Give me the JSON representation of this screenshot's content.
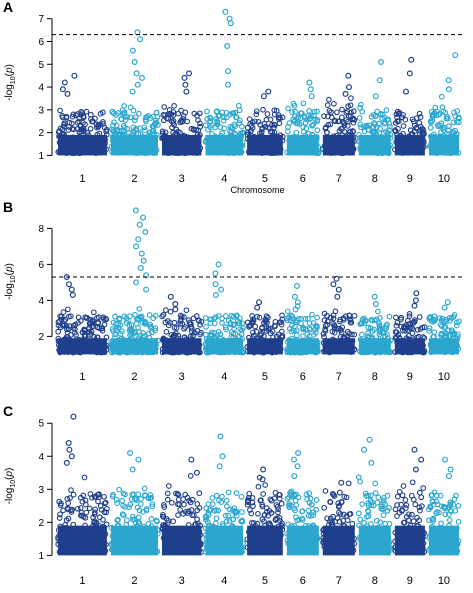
{
  "figure": {
    "panel_ylabel": "-log10(p)"
  },
  "chart_data": [
    {
      "panel_label": "A",
      "type": "scatter",
      "subtype": "manhattan",
      "xlabel": "Chromosome",
      "ylabel": "-log10(p)",
      "chromosomes": [
        "1",
        "2",
        "3",
        "4",
        "5",
        "6",
        "7",
        "8",
        "9",
        "10"
      ],
      "yticks": [
        1,
        2,
        3,
        4,
        5,
        6,
        7
      ],
      "ylim": [
        0.8,
        7.6
      ],
      "threshold": 6.3,
      "grid": false,
      "legend": "none",
      "colors": [
        "#1f3f8c",
        "#2aa6cf"
      ],
      "peaks": [
        {
          "chromosome": "1",
          "values": [
            4.5,
            4.2,
            3.9,
            3.7
          ]
        },
        {
          "chromosome": "2",
          "values": [
            6.4,
            6.1,
            5.6,
            5.1,
            4.6,
            4.4,
            4.1,
            3.8
          ]
        },
        {
          "chromosome": "3",
          "values": [
            4.6,
            4.4,
            4.1,
            3.8
          ]
        },
        {
          "chromosome": "4",
          "values": [
            7.3,
            7.0,
            6.8,
            5.8,
            4.7,
            4.1
          ]
        },
        {
          "chromosome": "5",
          "values": [
            3.8,
            3.6
          ]
        },
        {
          "chromosome": "6",
          "values": [
            4.2,
            3.9,
            3.6
          ]
        },
        {
          "chromosome": "7",
          "values": [
            4.5,
            4.0,
            3.7
          ]
        },
        {
          "chromosome": "8",
          "values": [
            5.1,
            4.3,
            3.6
          ]
        },
        {
          "chromosome": "9",
          "values": [
            5.2,
            4.6,
            3.8
          ]
        },
        {
          "chromosome": "10",
          "values": [
            5.4,
            4.3,
            3.9
          ]
        }
      ]
    },
    {
      "panel_label": "B",
      "type": "scatter",
      "subtype": "manhattan",
      "xlabel": "",
      "ylabel": "-log10(p)",
      "chromosomes": [
        "1",
        "2",
        "3",
        "4",
        "5",
        "6",
        "7",
        "8",
        "9",
        "10"
      ],
      "yticks": [
        2,
        4,
        6,
        8
      ],
      "ylim": [
        0.8,
        9.3
      ],
      "threshold": 5.3,
      "grid": false,
      "legend": "none",
      "colors": [
        "#1f3f8c",
        "#2aa6cf"
      ],
      "peaks": [
        {
          "chromosome": "1",
          "values": [
            5.3,
            4.9,
            4.6,
            4.3
          ]
        },
        {
          "chromosome": "2",
          "values": [
            9.0,
            8.6,
            8.2,
            7.8,
            7.4,
            7.0,
            6.6,
            6.2,
            5.8,
            5.4,
            5.0,
            4.6
          ]
        },
        {
          "chromosome": "3",
          "values": [
            4.2,
            3.8,
            3.5
          ]
        },
        {
          "chromosome": "4",
          "values": [
            6.0,
            5.5,
            4.9,
            4.6,
            4.3
          ]
        },
        {
          "chromosome": "5",
          "values": [
            3.9,
            3.6
          ]
        },
        {
          "chromosome": "6",
          "values": [
            4.8,
            4.2,
            3.9,
            3.5
          ]
        },
        {
          "chromosome": "7",
          "values": [
            5.2,
            4.9,
            4.6,
            4.2
          ]
        },
        {
          "chromosome": "8",
          "values": [
            4.2,
            3.8
          ]
        },
        {
          "chromosome": "9",
          "values": [
            4.4,
            4.0,
            3.7
          ]
        },
        {
          "chromosome": "10",
          "values": [
            3.9,
            3.6
          ]
        }
      ]
    },
    {
      "panel_label": "C",
      "type": "scatter",
      "subtype": "manhattan",
      "xlabel": "",
      "ylabel": "-log10(p)",
      "chromosomes": [
        "1",
        "2",
        "3",
        "4",
        "5",
        "6",
        "7",
        "8",
        "9",
        "10"
      ],
      "yticks": [
        1,
        2,
        3,
        4,
        5
      ],
      "ylim": [
        0.8,
        5.4
      ],
      "threshold": null,
      "grid": false,
      "legend": "none",
      "colors": [
        "#1f3f8c",
        "#2aa6cf"
      ],
      "peaks": [
        {
          "chromosome": "1",
          "values": [
            5.2,
            4.4,
            4.2,
            4.0,
            3.8
          ]
        },
        {
          "chromosome": "2",
          "values": [
            4.1,
            3.9,
            3.6
          ]
        },
        {
          "chromosome": "3",
          "values": [
            3.9,
            3.5
          ]
        },
        {
          "chromosome": "4",
          "values": [
            4.6,
            4.0,
            3.7
          ]
        },
        {
          "chromosome": "5",
          "values": [
            3.6,
            3.3
          ]
        },
        {
          "chromosome": "6",
          "values": [
            4.1,
            3.9,
            3.7,
            3.4
          ]
        },
        {
          "chromosome": "7",
          "values": [
            3.2,
            2.9
          ]
        },
        {
          "chromosome": "8",
          "values": [
            4.5,
            4.2,
            3.8
          ]
        },
        {
          "chromosome": "9",
          "values": [
            4.2,
            3.9,
            3.6
          ]
        },
        {
          "chromosome": "10",
          "values": [
            3.9,
            3.6,
            3.4
          ]
        }
      ]
    }
  ]
}
